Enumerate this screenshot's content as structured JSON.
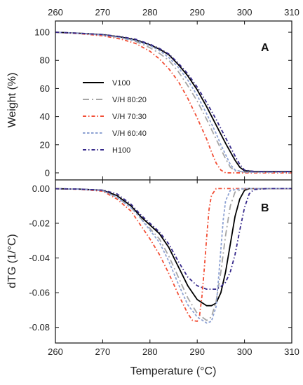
{
  "chart_data": [
    {
      "type": "line",
      "panel_label": "A",
      "xlabel": "",
      "ylabel": "Weight (%)",
      "xlim": [
        260,
        310
      ],
      "ylim": [
        -5,
        108
      ],
      "x_ticks": [
        260,
        270,
        280,
        290,
        300,
        310
      ],
      "y_ticks": [
        0,
        20,
        40,
        60,
        80,
        100
      ],
      "x_axis_position": "top",
      "legend_position": "center-left",
      "series": [
        {
          "name": "V100",
          "color": "#000000",
          "dash": "solid",
          "x": [
            260,
            265,
            270,
            274,
            277,
            280,
            282,
            284,
            286,
            288,
            290,
            292,
            294,
            296,
            298,
            299,
            300,
            302,
            305,
            310
          ],
          "y": [
            100,
            99.3,
            98.3,
            96.5,
            94.5,
            91,
            88,
            84,
            77,
            69,
            59,
            47,
            34,
            21,
            9,
            4,
            1.5,
            1,
            1,
            1
          ]
        },
        {
          "name": "V/H 80:20",
          "color": "#a6a6a6",
          "dash": "long-dash-dot",
          "x": [
            260,
            265,
            270,
            274,
            277,
            280,
            282,
            284,
            286,
            288,
            290,
            292,
            294,
            296,
            297,
            298,
            300,
            305,
            310
          ],
          "y": [
            100,
            99.2,
            98,
            96,
            93.5,
            89,
            85,
            80,
            72,
            62,
            51,
            38,
            24,
            10,
            4,
            1.5,
            0.5,
            0.5,
            0.5
          ]
        },
        {
          "name": "V/H 70:30",
          "color": "#f24d34",
          "dash": "dash-dot",
          "x": [
            260,
            265,
            270,
            274,
            277,
            280,
            282,
            284,
            286,
            288,
            290,
            292,
            293,
            294,
            295,
            296,
            300,
            305,
            310
          ],
          "y": [
            100,
            99,
            97.5,
            95,
            92,
            86.5,
            81,
            74,
            65,
            53,
            39,
            24,
            15,
            7,
            2,
            0,
            0,
            0,
            0
          ]
        },
        {
          "name": "V/H 60:40",
          "color": "#8ea2d3",
          "dash": "short-dash",
          "x": [
            260,
            265,
            270,
            274,
            277,
            280,
            282,
            284,
            286,
            288,
            290,
            292,
            294,
            295,
            296,
            297,
            298,
            300,
            305,
            310
          ],
          "y": [
            100,
            99.2,
            98,
            96,
            94,
            90.5,
            87,
            82,
            75,
            66,
            55,
            42,
            28,
            20,
            13,
            6,
            2,
            0.5,
            0.5,
            0.5
          ]
        },
        {
          "name": "H100",
          "color": "#35288a",
          "dash": "dash-dot",
          "x": [
            260,
            265,
            270,
            274,
            277,
            280,
            282,
            284,
            286,
            288,
            290,
            292,
            294,
            296,
            298,
            299,
            300,
            302,
            305,
            310
          ],
          "y": [
            100,
            99.3,
            98.4,
            96.8,
            95,
            91.5,
            88.5,
            84.5,
            78,
            70.5,
            61,
            50,
            38,
            25,
            12,
            6,
            2,
            1,
            1,
            1
          ]
        }
      ]
    },
    {
      "type": "line",
      "panel_label": "B",
      "xlabel": "Temperature (°C)",
      "ylabel": "dTG (1/°C)",
      "xlim": [
        260,
        310
      ],
      "ylim": [
        -0.089,
        0.005
      ],
      "x_ticks": [
        260,
        270,
        280,
        290,
        300,
        310
      ],
      "y_ticks": [
        0.0,
        -0.02,
        -0.04,
        -0.06,
        -0.08
      ],
      "y_tick_labels": [
        "0.00",
        "-0.02",
        "-0.04",
        "-0.06",
        "-0.08"
      ],
      "series": [
        {
          "name": "V100",
          "color": "#000000",
          "dash": "solid",
          "x": [
            260,
            265,
            270,
            273,
            276,
            278,
            280,
            282,
            284,
            286,
            288,
            290,
            292,
            293,
            294,
            295,
            296,
            297,
            298,
            299,
            300,
            301,
            305,
            310
          ],
          "y": [
            -0.0001,
            -0.0003,
            -0.001,
            -0.004,
            -0.01,
            -0.016,
            -0.021,
            -0.026,
            -0.034,
            -0.045,
            -0.056,
            -0.064,
            -0.0675,
            -0.0675,
            -0.066,
            -0.06,
            -0.048,
            -0.032,
            -0.016,
            -0.006,
            -0.001,
            0,
            0,
            0
          ]
        },
        {
          "name": "V/H 80:20",
          "color": "#a6a6a6",
          "dash": "long-dash-dot",
          "x": [
            260,
            265,
            270,
            273,
            276,
            278,
            280,
            282,
            284,
            286,
            288,
            290,
            292,
            293,
            294,
            295,
            296,
            297,
            298,
            300,
            305,
            310
          ],
          "y": [
            -0.0001,
            -0.0003,
            -0.0012,
            -0.005,
            -0.011,
            -0.017,
            -0.023,
            -0.029,
            -0.039,
            -0.051,
            -0.063,
            -0.072,
            -0.076,
            -0.074,
            -0.065,
            -0.048,
            -0.027,
            -0.01,
            -0.002,
            0,
            0,
            0
          ]
        },
        {
          "name": "V/H 70:30",
          "color": "#f24d34",
          "dash": "dash-dot",
          "x": [
            260,
            265,
            270,
            273,
            276,
            278,
            280,
            282,
            284,
            286,
            288,
            289,
            290,
            290.5,
            291,
            291.5,
            292,
            292.5,
            293,
            294,
            296,
            300,
            305,
            310
          ],
          "y": [
            -0.0001,
            -0.0004,
            -0.0015,
            -0.006,
            -0.013,
            -0.021,
            -0.029,
            -0.038,
            -0.049,
            -0.061,
            -0.072,
            -0.076,
            -0.0765,
            -0.073,
            -0.062,
            -0.046,
            -0.028,
            -0.012,
            -0.004,
            0,
            0,
            0,
            0,
            0
          ]
        },
        {
          "name": "V/H 60:40",
          "color": "#8ea2d3",
          "dash": "short-dash",
          "x": [
            260,
            265,
            270,
            273,
            276,
            278,
            280,
            282,
            284,
            286,
            288,
            290,
            292,
            293,
            294,
            294.5,
            295,
            295.5,
            296,
            297,
            300,
            305,
            310
          ],
          "y": [
            -0.0001,
            -0.0003,
            -0.0012,
            -0.005,
            -0.011,
            -0.017,
            -0.024,
            -0.031,
            -0.042,
            -0.055,
            -0.067,
            -0.074,
            -0.0775,
            -0.0765,
            -0.068,
            -0.052,
            -0.035,
            -0.018,
            -0.007,
            -0.001,
            0,
            0,
            0
          ]
        },
        {
          "name": "H100",
          "color": "#35288a",
          "dash": "dash-dot",
          "x": [
            260,
            265,
            270,
            273,
            276,
            278,
            280,
            282,
            284,
            286,
            288,
            290,
            292,
            294,
            295,
            296,
            297,
            298,
            299,
            300,
            301,
            302,
            305,
            310
          ],
          "y": [
            -0.0001,
            -0.0003,
            -0.0009,
            -0.003,
            -0.009,
            -0.015,
            -0.02,
            -0.025,
            -0.032,
            -0.042,
            -0.051,
            -0.056,
            -0.058,
            -0.058,
            -0.0565,
            -0.054,
            -0.048,
            -0.038,
            -0.024,
            -0.011,
            -0.003,
            -0.0005,
            0,
            0
          ]
        }
      ]
    }
  ]
}
